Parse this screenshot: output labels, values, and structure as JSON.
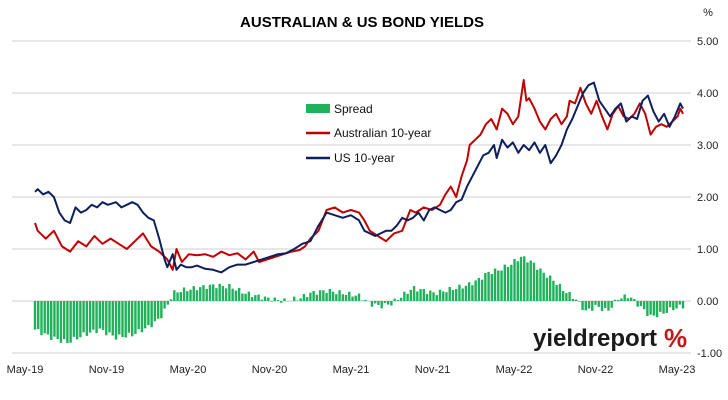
{
  "brand": {
    "text": "yieldreport",
    "symbol": "%",
    "symbol_colors": [
      "#1a9a3a",
      "#c41818"
    ]
  },
  "chart_data": {
    "type": "line",
    "title": "AUSTRALIAN & US BOND YIELDS",
    "y_unit_label": "%",
    "x_tick_labels": [
      "May-19",
      "Nov-19",
      "May-20",
      "Nov-20",
      "May-21",
      "Nov-21",
      "May-22",
      "Nov-22",
      "May-23"
    ],
    "y_tick_labels": [
      "5.00",
      "4.00",
      "3.00",
      "2.00",
      "1.00",
      "0.00",
      "-1.00"
    ],
    "ylim": [
      -1,
      5
    ],
    "y_axis_position": "right",
    "grid": "horizontal",
    "legend_position": "upper-left-center",
    "colors": {
      "spread": "#1fb25a",
      "aus": "#c00000",
      "us": "#0d1f5c",
      "grid": "#cfcfcf"
    },
    "series": [
      {
        "name": "Australian 10-year",
        "key": "aus",
        "kind": "line",
        "points": [
          [
            0.0,
            1.5
          ],
          [
            0.05,
            1.35
          ],
          [
            0.2,
            1.2
          ],
          [
            0.35,
            1.35
          ],
          [
            0.5,
            1.05
          ],
          [
            0.65,
            0.95
          ],
          [
            0.8,
            1.15
          ],
          [
            0.95,
            1.05
          ],
          [
            1.1,
            1.25
          ],
          [
            1.25,
            1.1
          ],
          [
            1.4,
            1.2
          ],
          [
            1.55,
            1.1
          ],
          [
            1.7,
            1.0
          ],
          [
            1.85,
            1.15
          ],
          [
            2.0,
            1.3
          ],
          [
            2.15,
            1.05
          ],
          [
            2.3,
            0.95
          ],
          [
            2.45,
            0.8
          ],
          [
            2.55,
            0.6
          ],
          [
            2.62,
            1.0
          ],
          [
            2.72,
            0.75
          ],
          [
            2.85,
            0.9
          ],
          [
            3.0,
            0.88
          ],
          [
            3.15,
            0.9
          ],
          [
            3.3,
            0.85
          ],
          [
            3.45,
            0.95
          ],
          [
            3.6,
            0.88
          ],
          [
            3.75,
            0.92
          ],
          [
            3.9,
            0.8
          ],
          [
            4.05,
            0.95
          ],
          [
            4.15,
            0.75
          ],
          [
            4.3,
            0.8
          ],
          [
            4.45,
            0.85
          ],
          [
            4.6,
            0.9
          ],
          [
            4.75,
            0.95
          ],
          [
            4.9,
            0.98
          ],
          [
            5.0,
            1.05
          ],
          [
            5.1,
            1.2
          ],
          [
            5.25,
            1.35
          ],
          [
            5.4,
            1.75
          ],
          [
            5.55,
            1.8
          ],
          [
            5.7,
            1.7
          ],
          [
            5.85,
            1.75
          ],
          [
            6.0,
            1.7
          ],
          [
            6.1,
            1.55
          ],
          [
            6.2,
            1.35
          ],
          [
            6.35,
            1.25
          ],
          [
            6.5,
            1.15
          ],
          [
            6.65,
            1.3
          ],
          [
            6.8,
            1.35
          ],
          [
            6.95,
            1.75
          ],
          [
            7.05,
            1.7
          ],
          [
            7.2,
            1.8
          ],
          [
            7.35,
            1.75
          ],
          [
            7.5,
            1.85
          ],
          [
            7.6,
            2.05
          ],
          [
            7.7,
            2.2
          ],
          [
            7.8,
            2.0
          ],
          [
            7.9,
            2.4
          ],
          [
            8.0,
            2.7
          ],
          [
            8.05,
            3.0
          ],
          [
            8.15,
            3.1
          ],
          [
            8.25,
            3.2
          ],
          [
            8.35,
            3.4
          ],
          [
            8.45,
            3.5
          ],
          [
            8.55,
            3.3
          ],
          [
            8.65,
            3.7
          ],
          [
            8.75,
            3.6
          ],
          [
            8.85,
            3.4
          ],
          [
            8.95,
            3.55
          ],
          [
            9.0,
            3.9
          ],
          [
            9.05,
            4.25
          ],
          [
            9.1,
            3.85
          ],
          [
            9.15,
            3.9
          ],
          [
            9.25,
            3.7
          ],
          [
            9.35,
            3.45
          ],
          [
            9.45,
            3.3
          ],
          [
            9.55,
            3.5
          ],
          [
            9.65,
            3.6
          ],
          [
            9.75,
            3.4
          ],
          [
            9.85,
            3.55
          ],
          [
            9.9,
            3.85
          ],
          [
            10.0,
            3.8
          ],
          [
            10.1,
            4.1
          ],
          [
            10.2,
            3.8
          ],
          [
            10.3,
            3.6
          ],
          [
            10.4,
            3.85
          ],
          [
            10.5,
            3.55
          ],
          [
            10.6,
            3.3
          ],
          [
            10.7,
            3.6
          ],
          [
            10.8,
            3.75
          ],
          [
            10.9,
            3.55
          ],
          [
            11.0,
            3.5
          ],
          [
            11.1,
            3.6
          ],
          [
            11.2,
            3.8
          ],
          [
            11.3,
            3.6
          ],
          [
            11.4,
            3.2
          ],
          [
            11.5,
            3.35
          ],
          [
            11.6,
            3.4
          ],
          [
            11.7,
            3.35
          ],
          [
            11.8,
            3.45
          ],
          [
            11.9,
            3.55
          ],
          [
            11.95,
            3.7
          ],
          [
            12.0,
            3.6
          ]
        ]
      },
      {
        "name": "US 10-year",
        "key": "us",
        "kind": "line",
        "points": [
          [
            0.0,
            2.1
          ],
          [
            0.05,
            2.15
          ],
          [
            0.15,
            2.05
          ],
          [
            0.25,
            2.1
          ],
          [
            0.35,
            2.0
          ],
          [
            0.45,
            1.7
          ],
          [
            0.55,
            1.55
          ],
          [
            0.65,
            1.5
          ],
          [
            0.75,
            1.8
          ],
          [
            0.85,
            1.7
          ],
          [
            0.95,
            1.75
          ],
          [
            1.05,
            1.85
          ],
          [
            1.15,
            1.8
          ],
          [
            1.25,
            1.9
          ],
          [
            1.35,
            1.85
          ],
          [
            1.5,
            1.9
          ],
          [
            1.6,
            1.8
          ],
          [
            1.7,
            1.85
          ],
          [
            1.8,
            1.9
          ],
          [
            1.9,
            1.85
          ],
          [
            2.0,
            1.7
          ],
          [
            2.1,
            1.6
          ],
          [
            2.2,
            1.55
          ],
          [
            2.3,
            1.2
          ],
          [
            2.4,
            0.8
          ],
          [
            2.45,
            0.65
          ],
          [
            2.55,
            0.9
          ],
          [
            2.62,
            0.6
          ],
          [
            2.7,
            0.7
          ],
          [
            2.8,
            0.65
          ],
          [
            2.9,
            0.65
          ],
          [
            3.0,
            0.68
          ],
          [
            3.15,
            0.62
          ],
          [
            3.3,
            0.6
          ],
          [
            3.45,
            0.55
          ],
          [
            3.6,
            0.65
          ],
          [
            3.75,
            0.7
          ],
          [
            3.9,
            0.7
          ],
          [
            4.05,
            0.75
          ],
          [
            4.2,
            0.8
          ],
          [
            4.35,
            0.85
          ],
          [
            4.5,
            0.9
          ],
          [
            4.65,
            0.92
          ],
          [
            4.8,
            1.0
          ],
          [
            4.95,
            1.1
          ],
          [
            5.1,
            1.15
          ],
          [
            5.25,
            1.45
          ],
          [
            5.4,
            1.7
          ],
          [
            5.55,
            1.65
          ],
          [
            5.7,
            1.6
          ],
          [
            5.85,
            1.65
          ],
          [
            6.0,
            1.55
          ],
          [
            6.1,
            1.35
          ],
          [
            6.2,
            1.3
          ],
          [
            6.3,
            1.25
          ],
          [
            6.4,
            1.3
          ],
          [
            6.5,
            1.35
          ],
          [
            6.6,
            1.35
          ],
          [
            6.7,
            1.45
          ],
          [
            6.8,
            1.6
          ],
          [
            6.9,
            1.55
          ],
          [
            7.0,
            1.6
          ],
          [
            7.1,
            1.7
          ],
          [
            7.2,
            1.55
          ],
          [
            7.3,
            1.75
          ],
          [
            7.4,
            1.8
          ],
          [
            7.5,
            1.75
          ],
          [
            7.6,
            1.7
          ],
          [
            7.7,
            1.75
          ],
          [
            7.8,
            1.9
          ],
          [
            7.9,
            1.95
          ],
          [
            8.0,
            2.2
          ],
          [
            8.1,
            2.4
          ],
          [
            8.2,
            2.6
          ],
          [
            8.3,
            2.8
          ],
          [
            8.4,
            2.85
          ],
          [
            8.5,
            3.0
          ],
          [
            8.55,
            2.75
          ],
          [
            8.65,
            3.1
          ],
          [
            8.75,
            2.95
          ],
          [
            8.85,
            3.05
          ],
          [
            8.95,
            2.85
          ],
          [
            9.05,
            3.0
          ],
          [
            9.15,
            2.9
          ],
          [
            9.25,
            3.05
          ],
          [
            9.35,
            2.85
          ],
          [
            9.45,
            3.0
          ],
          [
            9.55,
            2.65
          ],
          [
            9.65,
            2.8
          ],
          [
            9.75,
            3.0
          ],
          [
            9.85,
            3.3
          ],
          [
            9.95,
            3.5
          ],
          [
            10.05,
            3.75
          ],
          [
            10.15,
            4.0
          ],
          [
            10.25,
            4.15
          ],
          [
            10.35,
            4.2
          ],
          [
            10.45,
            3.85
          ],
          [
            10.55,
            3.7
          ],
          [
            10.65,
            3.55
          ],
          [
            10.75,
            3.7
          ],
          [
            10.85,
            3.8
          ],
          [
            10.95,
            3.45
          ],
          [
            11.05,
            3.55
          ],
          [
            11.15,
            3.5
          ],
          [
            11.25,
            3.85
          ],
          [
            11.35,
            3.95
          ],
          [
            11.45,
            3.65
          ],
          [
            11.55,
            3.45
          ],
          [
            11.65,
            3.6
          ],
          [
            11.75,
            3.35
          ],
          [
            11.85,
            3.55
          ],
          [
            11.95,
            3.8
          ],
          [
            12.0,
            3.7
          ]
        ]
      },
      {
        "name": "Spread",
        "key": "spread",
        "kind": "column",
        "points": [
          [
            0.0,
            -0.55
          ],
          [
            0.3,
            -0.7
          ],
          [
            0.6,
            -0.8
          ],
          [
            0.9,
            -0.65
          ],
          [
            1.2,
            -0.55
          ],
          [
            1.5,
            -0.7
          ],
          [
            1.8,
            -0.65
          ],
          [
            2.1,
            -0.5
          ],
          [
            2.3,
            -0.35
          ],
          [
            2.45,
            -0.1
          ],
          [
            2.55,
            0.15
          ],
          [
            2.7,
            0.2
          ],
          [
            3.0,
            0.25
          ],
          [
            3.3,
            0.3
          ],
          [
            3.6,
            0.28
          ],
          [
            3.9,
            0.15
          ],
          [
            4.1,
            0.1
          ],
          [
            4.3,
            0.05
          ],
          [
            4.6,
            0.0
          ],
          [
            4.9,
            0.05
          ],
          [
            5.1,
            0.15
          ],
          [
            5.4,
            0.2
          ],
          [
            5.7,
            0.15
          ],
          [
            6.0,
            0.1
          ],
          [
            6.2,
            -0.05
          ],
          [
            6.4,
            -0.1
          ],
          [
            6.6,
            -0.05
          ],
          [
            6.8,
            0.1
          ],
          [
            7.0,
            0.25
          ],
          [
            7.2,
            0.2
          ],
          [
            7.4,
            0.15
          ],
          [
            7.6,
            0.2
          ],
          [
            7.8,
            0.25
          ],
          [
            8.0,
            0.3
          ],
          [
            8.2,
            0.4
          ],
          [
            8.4,
            0.55
          ],
          [
            8.6,
            0.6
          ],
          [
            8.8,
            0.7
          ],
          [
            9.0,
            0.85
          ],
          [
            9.2,
            0.75
          ],
          [
            9.4,
            0.55
          ],
          [
            9.6,
            0.4
          ],
          [
            9.8,
            0.2
          ],
          [
            10.0,
            0.05
          ],
          [
            10.2,
            -0.2
          ],
          [
            10.4,
            -0.1
          ],
          [
            10.6,
            -0.2
          ],
          [
            10.8,
            0.05
          ],
          [
            11.0,
            0.1
          ],
          [
            11.2,
            -0.1
          ],
          [
            11.4,
            -0.3
          ],
          [
            11.6,
            -0.25
          ],
          [
            11.8,
            -0.15
          ],
          [
            12.0,
            -0.1
          ]
        ]
      }
    ]
  }
}
